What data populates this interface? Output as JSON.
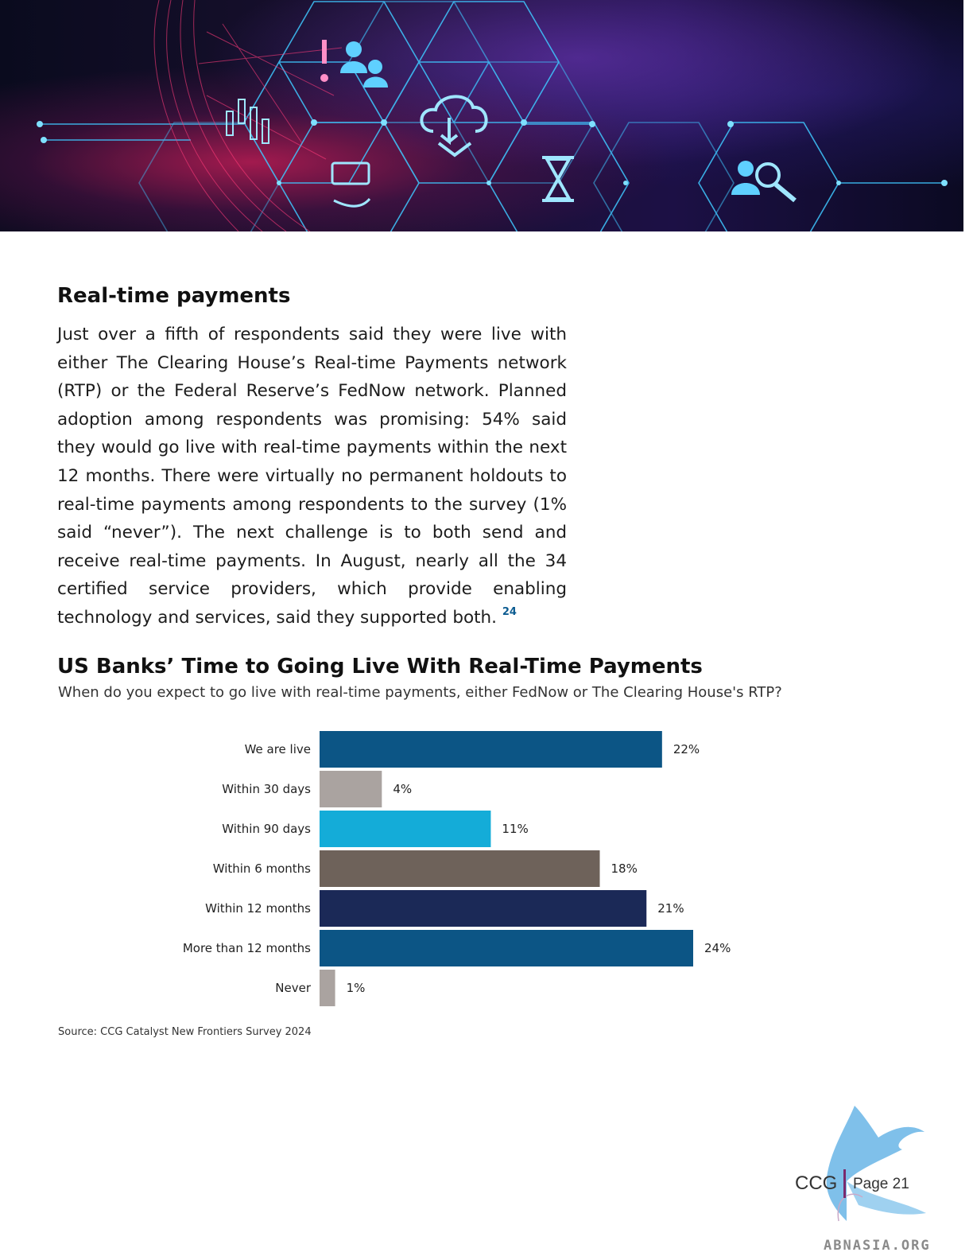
{
  "hero": {
    "icon_names": [
      "candlestick-chart-icon",
      "money-stack-icon",
      "cloud-download-icon",
      "hourglass-icon",
      "user-search-icon",
      "people-icon",
      "alert-icon"
    ]
  },
  "section": {
    "heading": "Real-time payments",
    "body": "Just over a fifth of respondents said they were live with either The Clearing House’s Real-time Payments network (RTP) or the Federal Reserve’s FedNow network. Planned adoption among respondents was promising: 54% said they would go live with real-time payments within the next 12 months. There were virtually no permanent holdouts to real-time payments among respondents to the survey (1% said “never”). The next challenge is to both send and receive real-time payments. In August, nearly all the 34 certified service providers, which provide enabling technology and services, said they supported both.",
    "footnote": "24"
  },
  "chart_data": {
    "type": "bar",
    "orientation": "horizontal",
    "title": "US Banks’ Time to Going Live With Real-Time Payments",
    "subtitle": "When do you expect to go live with real-time payments, either FedNow or The Clearing House's RTP?",
    "categories": [
      "We are live",
      "Within 30 days",
      "Within 90 days",
      "Within 6 months",
      "Within 12 months",
      "More than 12 months",
      "Never"
    ],
    "values": [
      22,
      4,
      11,
      18,
      21,
      24,
      1
    ],
    "value_labels": [
      "22%",
      "4%",
      "11%",
      "18%",
      "21%",
      "24%",
      "1%"
    ],
    "colors": [
      "#0c5585",
      "#aaa3a0",
      "#14acd8",
      "#6e625a",
      "#1b2957",
      "#0c5585",
      "#aaa3a0"
    ],
    "unit": "%",
    "xlim": [
      0,
      24
    ],
    "gridlines": false,
    "source": "Source: CCG Catalyst New Frontiers Survey 2024"
  },
  "footer": {
    "brand": "CCG",
    "page": "Page 21",
    "watermark": "ABNASIA.ORG"
  }
}
